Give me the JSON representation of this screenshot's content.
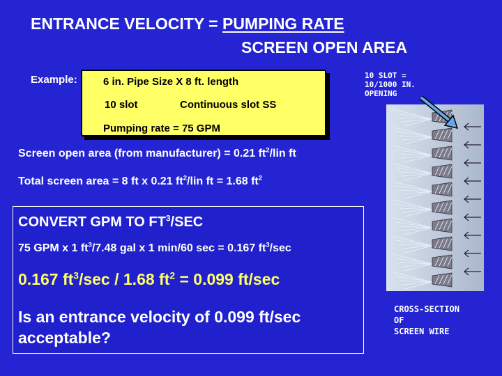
{
  "header": {
    "lhs": "ENTRANCE VELOCITY = ",
    "numerator": "PUMPING RATE",
    "denominator": "SCREEN OPEN AREA"
  },
  "example": {
    "label": "Example:",
    "pipe": "6 in. Pipe Size X 8 ft. length",
    "slot": "10 slot",
    "slot_type": "Continuous slot  SS",
    "pumping_rate": "Pumping rate = 75  GPM"
  },
  "slot_note": {
    "line1": "10 SLOT =",
    "line2": "10/1000 IN.",
    "line3": "OPENING"
  },
  "calc": {
    "open_area_prefix": "Screen open area (from manufacturer) = 0.21 ft",
    "open_area_exp": "2",
    "open_area_suffix": "/lin ft",
    "total_prefix": "Total screen area = 8 ft x 0.21 ft",
    "total_exp1": "2",
    "total_mid": "/lin ft = 1.68 ft",
    "total_exp2": "2"
  },
  "convert": {
    "title_prefix": "CONVERT GPM TO FT",
    "title_exp": "3",
    "title_suffix": "/SEC",
    "eq_prefix": "75 GPM  x 1 ft",
    "eq_exp1": "3",
    "eq_mid": "/7.48 gal x 1 min/60 sec = 0.167 ft",
    "eq_exp2": "3",
    "eq_suffix": "/sec",
    "result_prefix": "0.167 ft",
    "result_exp1": "3",
    "result_mid": "/sec / 1.68 ft",
    "result_exp2": "2",
    "result_suffix": " = 0.099 ft/sec",
    "question": "Is an entrance velocity of 0.099 ft/sec acceptable?"
  },
  "diagram": {
    "label_line1": "CROSS-SECTION",
    "label_line2": "OF",
    "label_line3": "SCREEN WIRE",
    "wire_count": 10,
    "wire_color": "#7a7a8a",
    "flow_color": "#e6ecf5"
  }
}
